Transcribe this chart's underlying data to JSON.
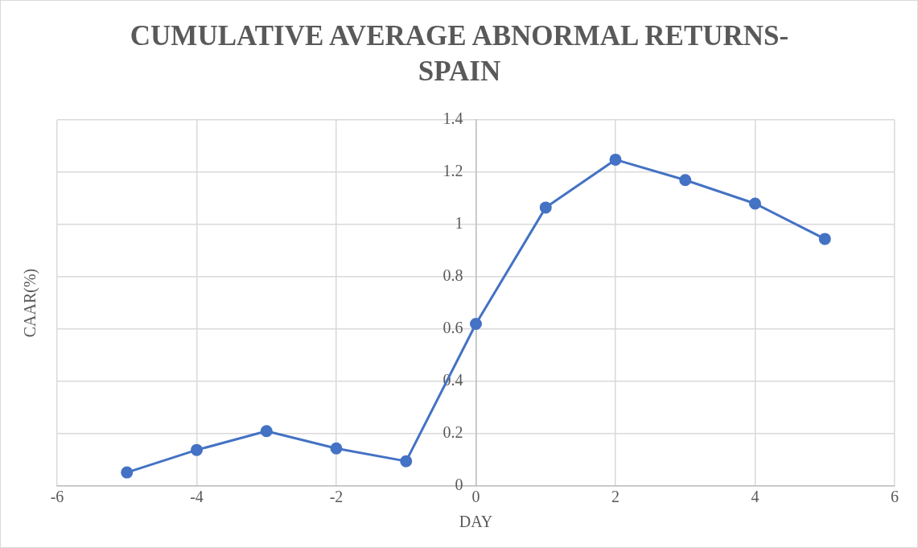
{
  "chart_data": {
    "type": "line",
    "title": "CUMULATIVE AVERAGE ABNORMAL RETURNS-SPAIN",
    "xlabel": "DAY",
    "ylabel": "CAAR(%)",
    "x": [
      -5,
      -4,
      -3,
      -2,
      -1,
      0,
      1,
      2,
      3,
      4,
      5
    ],
    "series": [
      {
        "color": "#4472c4",
        "values": [
          0.052,
          0.138,
          0.21,
          0.144,
          0.095,
          0.62,
          1.065,
          1.248,
          1.17,
          1.08,
          0.945
        ]
      }
    ],
    "xlim": [
      -6,
      6
    ],
    "xticks": [
      -6,
      -4,
      -2,
      0,
      2,
      4,
      6
    ],
    "ylim": [
      0,
      1.4
    ],
    "yticks": [
      0,
      0.2,
      0.4,
      0.6,
      0.8,
      1,
      1.2,
      1.4
    ],
    "grid": true,
    "legend": false,
    "marker": "circle",
    "line_style": "solid"
  }
}
